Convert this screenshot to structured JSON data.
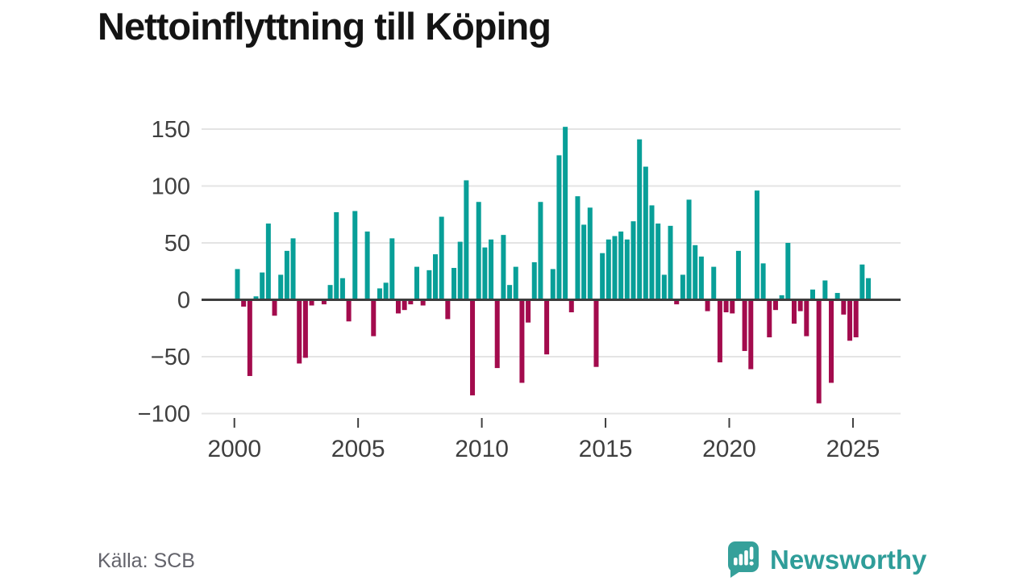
{
  "header": {
    "title": "Nettoinflyttning till Köping"
  },
  "footer": {
    "source": "Källa: SCB",
    "logo_text": "Newsworthy"
  },
  "colors": {
    "positive": "#089f98",
    "negative": "#a30b4d",
    "grid": "#e4e4e4",
    "zero_line": "#3d3d3d",
    "axis_text": "#3f3f3f",
    "logo_badge": "#35a09a",
    "logo_text": "#2f9d99",
    "title_text": "#141414",
    "source_text": "#63636b"
  },
  "chart_data": {
    "type": "bar",
    "title": "Nettoinflyttning till Köping",
    "frequency": "quarterly",
    "x_start": {
      "year": 2000,
      "quarter": 1
    },
    "x_end": {
      "year": 2025,
      "quarter": 3
    },
    "x_tick_labels": [
      "2000",
      "2005",
      "2010",
      "2015",
      "2020",
      "2025"
    ],
    "y_ticks": [
      150,
      100,
      50,
      0,
      -50,
      -100
    ],
    "ylim": [
      -110,
      163
    ],
    "grid": true,
    "legend": "none",
    "positive_color": "#089f98",
    "negative_color": "#a30b4d",
    "ylabel": "",
    "xlabel": "",
    "source": "Källa: SCB",
    "values": [
      27,
      -6,
      -67,
      3,
      24,
      67,
      -14,
      22,
      43,
      54,
      -56,
      -51,
      -5,
      0,
      -4,
      13,
      77,
      19,
      -19,
      78,
      0,
      60,
      -32,
      10,
      15,
      54,
      -12,
      -9,
      -4,
      29,
      -5,
      26,
      40,
      73,
      -17,
      28,
      51,
      105,
      -84,
      86,
      46,
      53,
      -60,
      57,
      13,
      29,
      -73,
      -20,
      33,
      86,
      -48,
      27,
      127,
      152,
      -11,
      91,
      66,
      81,
      -59,
      41,
      53,
      56,
      60,
      53,
      69,
      141,
      117,
      83,
      67,
      22,
      65,
      -4,
      22,
      88,
      48,
      38,
      -10,
      29,
      -55,
      -11,
      -12,
      43,
      -45,
      -61,
      96,
      32,
      -33,
      -9,
      4,
      50,
      -21,
      -10,
      -32,
      9,
      -91,
      17,
      -73,
      6,
      -13,
      -36,
      -33,
      31,
      19
    ]
  }
}
